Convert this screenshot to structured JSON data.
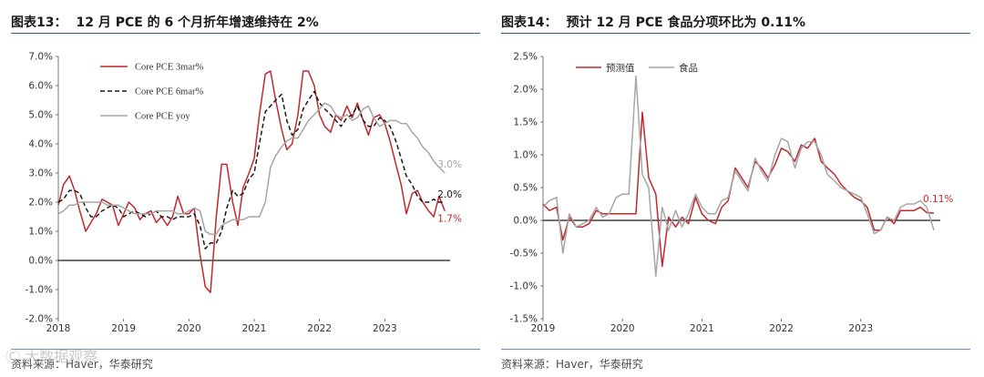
{
  "figures": [
    {
      "label": "图表13：",
      "title": "12 月 PCE 的 6 个月折年增速维持在 2%",
      "source": "资料来源：Haver，华泰研究"
    },
    {
      "label": "图表14：",
      "title": "预计 12 月 PCE 食品分项环比为 0.11%",
      "source": "资料来源：Haver，华泰研究"
    }
  ],
  "watermark": "Ⓒ 大数据观察",
  "chart_data": [
    {
      "type": "line",
      "ylim": [
        -2.0,
        7.0
      ],
      "xlim": [
        2018.0,
        2024.0
      ],
      "y_ticks": [
        "-2.0%",
        "-1.0%",
        "0.0%",
        "1.0%",
        "2.0%",
        "3.0%",
        "4.0%",
        "5.0%",
        "6.0%",
        "7.0%"
      ],
      "x_ticks": [
        "2018",
        "2019",
        "2020",
        "2021",
        "2022",
        "2023"
      ],
      "legend_position": "top-left",
      "series": [
        {
          "name": "Core PCE 3mar%",
          "color": "#c0282d",
          "dash": "solid",
          "x": [
            2018.0,
            2018.08,
            2018.17,
            2018.25,
            2018.33,
            2018.42,
            2018.5,
            2018.58,
            2018.67,
            2018.75,
            2018.83,
            2018.92,
            2019.0,
            2019.08,
            2019.17,
            2019.25,
            2019.33,
            2019.42,
            2019.5,
            2019.58,
            2019.67,
            2019.75,
            2019.83,
            2019.92,
            2020.0,
            2020.08,
            2020.17,
            2020.25,
            2020.33,
            2020.42,
            2020.5,
            2020.58,
            2020.67,
            2020.75,
            2020.83,
            2020.92,
            2021.0,
            2021.08,
            2021.17,
            2021.25,
            2021.33,
            2021.42,
            2021.5,
            2021.58,
            2021.67,
            2021.75,
            2021.83,
            2021.92,
            2022.0,
            2022.08,
            2022.17,
            2022.25,
            2022.33,
            2022.42,
            2022.5,
            2022.58,
            2022.67,
            2022.75,
            2022.83,
            2022.92,
            2023.0,
            2023.08,
            2023.17,
            2023.25,
            2023.33,
            2023.42,
            2023.5,
            2023.58,
            2023.67,
            2023.75,
            2023.83,
            2023.92
          ],
          "values": [
            1.9,
            2.6,
            2.9,
            2.4,
            1.7,
            1.0,
            1.3,
            1.6,
            2.1,
            2.0,
            1.9,
            1.2,
            1.6,
            2.0,
            1.8,
            1.4,
            1.6,
            1.7,
            1.3,
            1.5,
            1.2,
            1.5,
            2.2,
            1.6,
            1.6,
            1.8,
            0.2,
            -0.9,
            -1.1,
            1.5,
            3.3,
            3.3,
            2.0,
            1.2,
            2.5,
            3.0,
            3.5,
            5.0,
            6.4,
            6.5,
            5.5,
            4.5,
            3.8,
            4.0,
            5.0,
            6.5,
            6.5,
            6.0,
            5.0,
            4.6,
            4.4,
            5.0,
            4.8,
            5.3,
            4.9,
            5.4,
            4.8,
            4.3,
            4.9,
            5.0,
            4.7,
            4.1,
            3.3,
            2.6,
            1.6,
            2.3,
            2.4,
            2.0,
            1.7,
            1.5,
            2.2,
            1.7
          ]
        },
        {
          "name": "Core PCE 6mar%",
          "color": "#1a1a1a",
          "dash": "dashed",
          "x": [
            2018.0,
            2018.08,
            2018.17,
            2018.25,
            2018.33,
            2018.42,
            2018.5,
            2018.58,
            2018.67,
            2018.75,
            2018.83,
            2018.92,
            2019.0,
            2019.08,
            2019.17,
            2019.25,
            2019.33,
            2019.42,
            2019.5,
            2019.58,
            2019.67,
            2019.75,
            2019.83,
            2019.92,
            2020.0,
            2020.08,
            2020.17,
            2020.25,
            2020.33,
            2020.42,
            2020.5,
            2020.58,
            2020.67,
            2020.75,
            2020.83,
            2020.92,
            2021.0,
            2021.08,
            2021.17,
            2021.25,
            2021.33,
            2021.42,
            2021.5,
            2021.58,
            2021.67,
            2021.75,
            2021.83,
            2021.92,
            2022.0,
            2022.08,
            2022.17,
            2022.25,
            2022.33,
            2022.42,
            2022.5,
            2022.58,
            2022.67,
            2022.75,
            2022.83,
            2022.92,
            2023.0,
            2023.08,
            2023.17,
            2023.25,
            2023.33,
            2023.42,
            2023.5,
            2023.58,
            2023.67,
            2023.75,
            2023.83,
            2023.92
          ],
          "values": [
            2.0,
            2.1,
            2.4,
            2.4,
            2.3,
            1.8,
            1.5,
            1.5,
            1.7,
            1.8,
            1.9,
            1.8,
            1.5,
            1.6,
            1.7,
            1.6,
            1.5,
            1.6,
            1.7,
            1.5,
            1.5,
            1.4,
            1.5,
            1.5,
            1.5,
            1.6,
            1.2,
            0.4,
            0.6,
            0.6,
            1.0,
            1.8,
            2.4,
            2.2,
            2.3,
            2.8,
            3.0,
            4.0,
            5.1,
            5.3,
            5.5,
            5.7,
            4.8,
            4.3,
            4.5,
            5.2,
            5.5,
            5.8,
            5.4,
            5.2,
            5.0,
            4.8,
            4.6,
            4.9,
            5.0,
            5.3,
            4.8,
            4.6,
            4.6,
            4.9,
            4.8,
            4.6,
            4.1,
            3.5,
            2.9,
            2.6,
            2.2,
            2.0,
            2.0,
            2.1,
            2.0,
            2.0
          ]
        },
        {
          "name": "Core PCE yoy",
          "color": "#a6a6a6",
          "dash": "solid",
          "x": [
            2018.0,
            2018.08,
            2018.17,
            2018.25,
            2018.33,
            2018.42,
            2018.5,
            2018.58,
            2018.67,
            2018.75,
            2018.83,
            2018.92,
            2019.0,
            2019.08,
            2019.17,
            2019.25,
            2019.33,
            2019.42,
            2019.5,
            2019.58,
            2019.67,
            2019.75,
            2019.83,
            2019.92,
            2020.0,
            2020.08,
            2020.17,
            2020.25,
            2020.33,
            2020.42,
            2020.5,
            2020.58,
            2020.67,
            2020.75,
            2020.83,
            2020.92,
            2021.0,
            2021.08,
            2021.17,
            2021.25,
            2021.33,
            2021.42,
            2021.5,
            2021.58,
            2021.67,
            2021.75,
            2021.83,
            2021.92,
            2022.0,
            2022.08,
            2022.17,
            2022.25,
            2022.33,
            2022.42,
            2022.5,
            2022.58,
            2022.67,
            2022.75,
            2022.83,
            2022.92,
            2023.0,
            2023.08,
            2023.17,
            2023.25,
            2023.33,
            2023.42,
            2023.5,
            2023.58,
            2023.67,
            2023.75,
            2023.83,
            2023.92
          ],
          "values": [
            1.6,
            1.7,
            1.9,
            1.9,
            2.0,
            2.0,
            2.0,
            2.0,
            2.0,
            1.9,
            1.9,
            1.9,
            1.8,
            1.7,
            1.6,
            1.6,
            1.6,
            1.6,
            1.7,
            1.7,
            1.7,
            1.7,
            1.6,
            1.6,
            1.7,
            1.8,
            1.7,
            1.0,
            0.9,
            0.9,
            1.2,
            1.3,
            1.4,
            1.4,
            1.4,
            1.5,
            1.5,
            1.5,
            2.0,
            3.2,
            3.6,
            3.9,
            4.1,
            4.2,
            4.2,
            4.5,
            4.8,
            5.0,
            5.2,
            5.4,
            5.3,
            5.0,
            4.9,
            5.0,
            4.8,
            4.9,
            5.2,
            5.3,
            4.9,
            4.6,
            4.7,
            4.8,
            4.8,
            4.7,
            4.7,
            4.4,
            4.2,
            3.9,
            3.7,
            3.4,
            3.2,
            3.0
          ]
        }
      ],
      "annotations": [
        {
          "text": "3.0%",
          "value": 3.0,
          "series": "Core PCE yoy",
          "color": "#a6a6a6"
        },
        {
          "text": "2.0%",
          "value": 2.0,
          "series": "Core PCE 6mar%",
          "color": "#1a1a1a"
        },
        {
          "text": "1.7%",
          "value": 1.7,
          "series": "Core PCE 3mar%",
          "color": "#c0282d"
        }
      ]
    },
    {
      "type": "line",
      "ylim": [
        -1.5,
        2.5
      ],
      "xlim": [
        2019.0,
        2024.0
      ],
      "y_ticks": [
        "-1.5%",
        "-1.0%",
        "-0.5%",
        "0.0%",
        "0.5%",
        "1.0%",
        "1.5%",
        "2.0%",
        "2.5%"
      ],
      "x_ticks": [
        "2019",
        "2020",
        "2021",
        "2022",
        "2023"
      ],
      "legend_position": "top-left",
      "series": [
        {
          "name": "预测值",
          "color": "#c0282d",
          "dash": "solid",
          "x": [
            2019.0,
            2019.08,
            2019.17,
            2019.25,
            2019.33,
            2019.42,
            2019.5,
            2019.58,
            2019.67,
            2019.75,
            2019.83,
            2019.92,
            2020.0,
            2020.08,
            2020.17,
            2020.25,
            2020.33,
            2020.42,
            2020.5,
            2020.58,
            2020.67,
            2020.75,
            2020.83,
            2020.92,
            2021.0,
            2021.08,
            2021.17,
            2021.25,
            2021.33,
            2021.42,
            2021.5,
            2021.58,
            2021.67,
            2021.75,
            2021.83,
            2021.92,
            2022.0,
            2022.08,
            2022.17,
            2022.25,
            2022.33,
            2022.42,
            2022.5,
            2022.58,
            2022.67,
            2022.75,
            2022.83,
            2022.92,
            2023.0,
            2023.08,
            2023.17,
            2023.25,
            2023.33,
            2023.42,
            2023.5,
            2023.58,
            2023.67,
            2023.75,
            2023.83,
            2023.92
          ],
          "values": [
            0.25,
            0.15,
            0.2,
            -0.3,
            0.05,
            -0.1,
            -0.1,
            -0.05,
            0.15,
            0.1,
            0.1,
            0.1,
            0.1,
            0.1,
            0.1,
            1.65,
            0.65,
            0.4,
            -0.7,
            0.05,
            -0.1,
            0.05,
            -0.05,
            0.35,
            0.1,
            0.0,
            -0.05,
            0.2,
            0.3,
            0.8,
            0.65,
            0.5,
            0.9,
            0.8,
            0.65,
            0.85,
            1.1,
            1.05,
            0.9,
            1.15,
            1.1,
            1.25,
            0.9,
            0.8,
            0.7,
            0.55,
            0.45,
            0.35,
            0.3,
            0.2,
            -0.15,
            -0.15,
            0.05,
            -0.05,
            0.15,
            0.15,
            0.15,
            0.2,
            0.12,
            0.11
          ]
        },
        {
          "name": "食品",
          "color": "#a6a6a6",
          "dash": "solid",
          "x": [
            2019.0,
            2019.08,
            2019.17,
            2019.25,
            2019.33,
            2019.42,
            2019.5,
            2019.58,
            2019.67,
            2019.75,
            2019.83,
            2019.92,
            2020.0,
            2020.08,
            2020.17,
            2020.25,
            2020.33,
            2020.42,
            2020.5,
            2020.58,
            2020.67,
            2020.75,
            2020.83,
            2020.92,
            2021.0,
            2021.08,
            2021.17,
            2021.25,
            2021.33,
            2021.42,
            2021.5,
            2021.58,
            2021.67,
            2021.75,
            2021.83,
            2021.92,
            2022.0,
            2022.08,
            2022.17,
            2022.25,
            2022.33,
            2022.42,
            2022.5,
            2022.58,
            2022.67,
            2022.75,
            2022.83,
            2022.92,
            2023.0,
            2023.08,
            2023.17,
            2023.25,
            2023.33,
            2023.42,
            2023.5,
            2023.58,
            2023.67,
            2023.75,
            2023.83,
            2023.92
          ],
          "values": [
            0.2,
            0.3,
            0.35,
            -0.5,
            0.1,
            -0.1,
            -0.05,
            0.0,
            0.2,
            0.05,
            0.1,
            0.35,
            0.4,
            0.4,
            2.2,
            0.7,
            0.5,
            -0.85,
            0.2,
            -0.15,
            0.15,
            -0.1,
            0.1,
            0.4,
            0.2,
            0.1,
            0.1,
            0.3,
            0.35,
            0.75,
            0.6,
            0.45,
            0.95,
            0.75,
            0.6,
            1.0,
            1.25,
            1.2,
            0.8,
            1.1,
            1.2,
            1.2,
            1.0,
            0.7,
            0.6,
            0.5,
            0.45,
            0.4,
            0.35,
            0.1,
            -0.2,
            -0.15,
            0.05,
            0.0,
            0.2,
            0.25,
            0.25,
            0.3,
            0.2,
            -0.15
          ]
        }
      ],
      "annotations": [
        {
          "text": "0.11%",
          "value": 0.11,
          "series": "预测值",
          "color": "#c0282d"
        }
      ]
    }
  ]
}
